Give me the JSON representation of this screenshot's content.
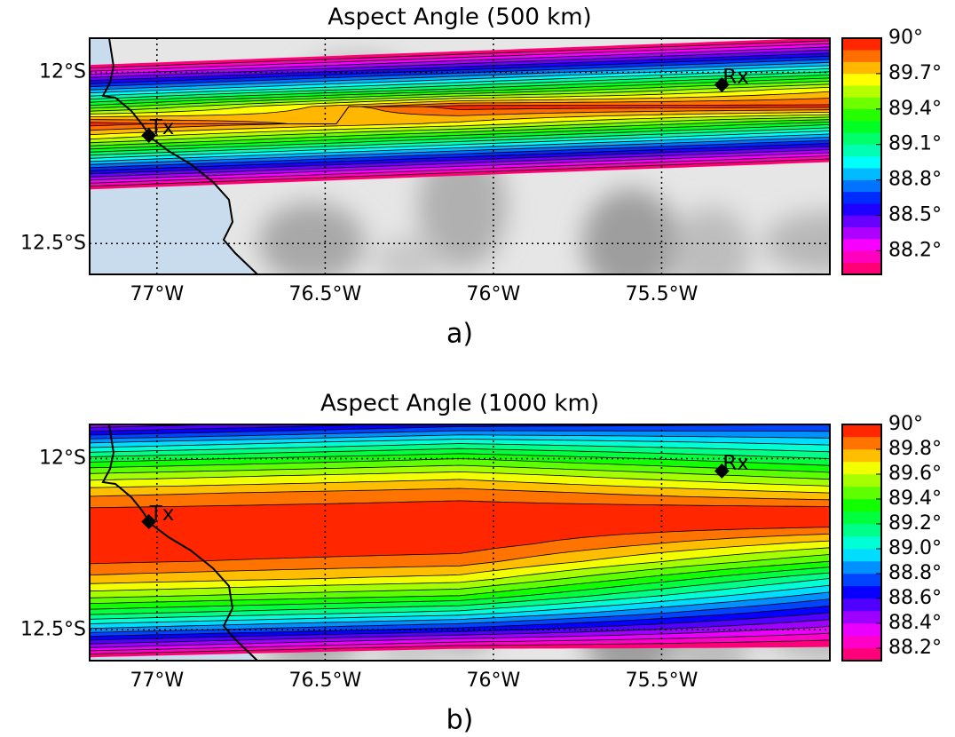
{
  "chart_data": [
    {
      "type": "contour",
      "title": "Aspect Angle (500 km)",
      "panel_label": "a)",
      "x": [
        -77.2,
        -76.1,
        -75.0
      ],
      "y": [
        -11.9,
        -11.95,
        -12.0,
        -12.05,
        -12.1,
        -12.15,
        -12.2,
        -12.25,
        -12.3,
        -12.35,
        -12.4,
        -12.45,
        -12.5,
        -12.55,
        -12.6
      ],
      "z": [
        [
          87.14,
          87.58,
          88.02
        ],
        [
          87.69,
          88.13,
          88.57
        ],
        [
          88.24,
          88.68,
          89.12
        ],
        [
          88.79,
          89.23,
          89.67
        ],
        [
          89.34,
          89.95,
          89.93
        ],
        [
          89.95,
          89.67,
          89.23
        ],
        [
          89.56,
          89.12,
          88.68
        ],
        [
          89.01,
          88.57,
          88.13
        ],
        [
          88.46,
          88.02,
          87.58
        ],
        [
          87.91,
          87.47,
          87.03
        ],
        [
          87.36,
          86.92,
          86.48
        ],
        [
          86.81,
          86.37,
          85.93
        ],
        [
          86.26,
          85.82,
          85.38
        ],
        [
          85.71,
          85.27,
          84.83
        ],
        [
          85.16,
          84.72,
          84.28
        ]
      ],
      "xlim": [
        -77.2,
        -75.0
      ],
      "ylim": [
        -12.59,
        -11.9
      ],
      "xticks": [
        {
          "value": -77,
          "label": "77°W"
        },
        {
          "value": -76.5,
          "label": "76.5°W"
        },
        {
          "value": -76,
          "label": "76°W"
        },
        {
          "value": -75.5,
          "label": "75.5°W"
        }
      ],
      "yticks": [
        {
          "value": -12,
          "label": "12°S"
        },
        {
          "value": -12.5,
          "label": "12.5°S"
        }
      ],
      "grid": true,
      "levels": [
        88.0,
        88.1,
        88.2,
        88.3,
        88.4,
        88.5,
        88.6,
        88.7,
        88.8,
        88.9,
        89.0,
        89.1,
        89.2,
        89.3,
        89.4,
        89.5,
        89.6,
        89.7,
        89.8,
        89.9,
        90.0
      ],
      "colors": [
        "hsl(332,100%,50%)",
        "hsl(315,100%,50%)",
        "hsl(298,100%,50%)",
        "hsl(281,100%,50%)",
        "hsl(264,100%,50%)",
        "hsl(247,100%,50%)",
        "hsl(230,100%,50%)",
        "hsl(213,100%,50%)",
        "hsl(196,100%,50%)",
        "hsl(179,100%,50%)",
        "hsl(162,100%,50%)",
        "hsl(145,100%,50%)",
        "hsl(128,100%,50%)",
        "hsl(111,100%,50%)",
        "hsl(94,100%,50%)",
        "hsl(77,100%,50%)",
        "hsl(60,100%,50%)",
        "hsl(43,100%,50%)",
        "hsl(26,100%,50%)",
        "hsl(9,100%,50%)"
      ],
      "cbar_ticks": [
        {
          "value": 88.2,
          "label": "88.2°"
        },
        {
          "value": 88.5,
          "label": "88.5°"
        },
        {
          "value": 88.8,
          "label": "88.8°"
        },
        {
          "value": 89.1,
          "label": "89.1°"
        },
        {
          "value": 89.4,
          "label": "89.4°"
        },
        {
          "value": 89.7,
          "label": "89.7°"
        },
        {
          "value": 90,
          "label": "90°"
        }
      ],
      "markers": [
        {
          "label": "Tx",
          "lon": -77.024,
          "lat": -12.184
        },
        {
          "label": "Rx",
          "lon": -75.321,
          "lat": -12.036
        }
      ]
    },
    {
      "type": "contour",
      "title": "Aspect Angle (1000 km)",
      "panel_label": "b)",
      "x": [
        -77.2,
        -76.1,
        -75.0
      ],
      "y": [
        -11.9,
        -11.95,
        -12.0,
        -12.05,
        -12.1,
        -12.15,
        -12.2,
        -12.25,
        -12.3,
        -12.35,
        -12.4,
        -12.45,
        -12.5,
        -12.55,
        -12.6
      ],
      "z": [
        [
          88.42,
          88.65,
          88.7
        ],
        [
          88.87,
          89.06,
          88.95
        ],
        [
          89.24,
          89.4,
          89.2
        ],
        [
          89.54,
          89.66,
          89.45
        ],
        [
          89.77,
          89.85,
          89.7
        ],
        [
          89.92,
          89.96,
          89.95
        ],
        [
          89.99,
          90.0,
          89.9
        ],
        [
          89.99,
          89.96,
          89.65
        ],
        [
          89.92,
          89.85,
          89.4
        ],
        [
          89.77,
          89.66,
          89.1
        ],
        [
          89.54,
          89.4,
          88.85
        ],
        [
          89.24,
          89.06,
          88.6
        ],
        [
          88.87,
          88.65,
          88.35
        ],
        [
          88.42,
          88.16,
          88.1
        ],
        [
          87.89,
          87.6,
          87.85
        ]
      ],
      "xlim": [
        -77.2,
        -75.0
      ],
      "ylim": [
        -12.59,
        -11.9
      ],
      "xticks": [
        {
          "value": -77,
          "label": "77°W"
        },
        {
          "value": -76.5,
          "label": "76.5°W"
        },
        {
          "value": -76,
          "label": "76°W"
        },
        {
          "value": -75.5,
          "label": "75.5°W"
        }
      ],
      "yticks": [
        {
          "value": -12,
          "label": "12°S"
        },
        {
          "value": -12.5,
          "label": "12.5°S"
        }
      ],
      "grid": true,
      "levels": [
        88.1,
        88.2,
        88.3,
        88.4,
        88.5,
        88.6,
        88.7,
        88.8,
        88.9,
        89.0,
        89.1,
        89.2,
        89.3,
        89.4,
        89.5,
        89.6,
        89.7,
        89.8,
        89.9,
        90.0
      ],
      "colors": [
        "hsl(331,100%,50%)",
        "hsl(313,100%,50%)",
        "hsl(295,100%,50%)",
        "hsl(277,100%,50%)",
        "hsl(259,100%,50%)",
        "hsl(242,100%,50%)",
        "hsl(224,100%,50%)",
        "hsl(206,100%,50%)",
        "hsl(188,100%,50%)",
        "hsl(170,100%,50%)",
        "hsl(152,100%,50%)",
        "hsl(134,100%,50%)",
        "hsl(116,100%,50%)",
        "hsl(98,100%,50%)",
        "hsl(81,100%,50%)",
        "hsl(63,100%,50%)",
        "hsl(45,100%,50%)",
        "hsl(27,100%,50%)",
        "hsl(9,100%,50%)"
      ],
      "cbar_ticks": [
        {
          "value": 88.2,
          "label": "88.2°"
        },
        {
          "value": 88.4,
          "label": "88.4°"
        },
        {
          "value": 88.6,
          "label": "88.6°"
        },
        {
          "value": 88.8,
          "label": "88.8°"
        },
        {
          "value": 89.0,
          "label": "89.0°"
        },
        {
          "value": 89.2,
          "label": "89.2°"
        },
        {
          "value": 89.4,
          "label": "89.4°"
        },
        {
          "value": 89.6,
          "label": "89.6°"
        },
        {
          "value": 89.8,
          "label": "89.8°"
        },
        {
          "value": 90,
          "label": "90°"
        }
      ],
      "markers": [
        {
          "label": "Tx",
          "lon": -77.024,
          "lat": -12.184
        },
        {
          "label": "Rx",
          "lon": -75.321,
          "lat": -12.036
        }
      ]
    }
  ]
}
